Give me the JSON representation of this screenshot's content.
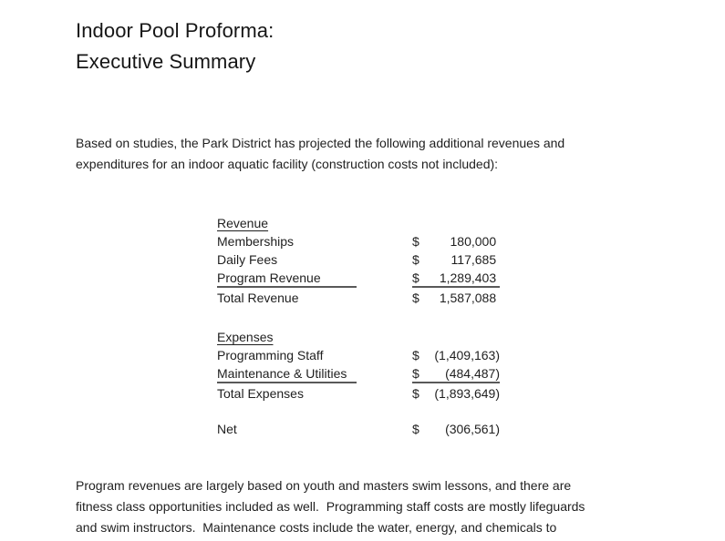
{
  "page": {
    "background_color": "#ffffff",
    "text_color": "#1f1f1f",
    "rule_color": "#595959"
  },
  "title": {
    "line1": "Indoor Pool Proforma:",
    "line2": "Executive Summary"
  },
  "intro": {
    "lines": [
      "Based on studies, the Park District has projected the following additional revenues and",
      "expenditures for an indoor aquatic facility (construction costs not included):"
    ]
  },
  "table": {
    "revenue": {
      "header": "Revenue",
      "rows": [
        {
          "label": "Memberships",
          "currency": "$",
          "value": "180,000 "
        },
        {
          "label": "Daily Fees",
          "currency": "$",
          "value": "117,685 "
        },
        {
          "label": "Program Revenue",
          "currency": "$",
          "value": "1,289,403 "
        }
      ],
      "total": {
        "label": "Total Revenue",
        "currency": "$",
        "value": "1,587,088 "
      }
    },
    "expenses": {
      "header": "Expenses",
      "rows": [
        {
          "label": "Programming Staff",
          "currency": "$",
          "value": "(1,409,163)"
        },
        {
          "label": "Maintenance & Utilities",
          "currency": "$",
          "value": "(484,487)"
        }
      ],
      "total": {
        "label": "Total Expenses",
        "currency": "$",
        "value": "(1,893,649)"
      }
    },
    "net": {
      "label": "Net",
      "currency": "$",
      "value": "(306,561)"
    }
  },
  "closing": {
    "lines": [
      "Program revenues are largely based on youth and masters swim lessons, and there are",
      "fitness class opportunities included as well.  Programming staff costs are mostly lifeguards",
      "and swim instructors.  Maintenance costs include the water, energy, and chemicals to"
    ]
  }
}
